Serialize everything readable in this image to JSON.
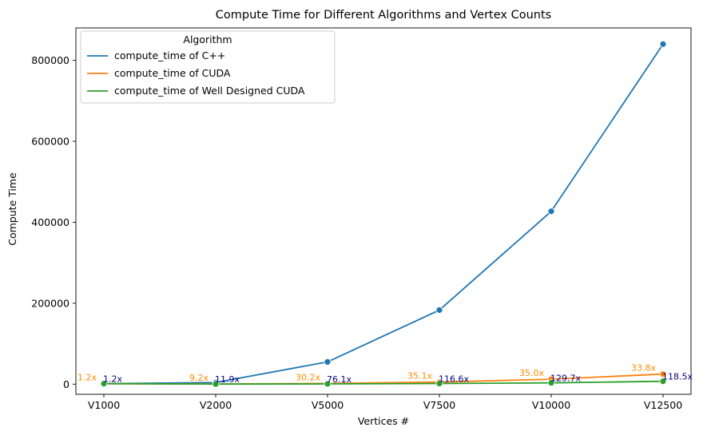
{
  "chart_data": {
    "type": "line",
    "title": "Compute Time for Different Algorithms and Vertex Counts",
    "xlabel": "Vertices #",
    "ylabel": "Compute Time",
    "categories": [
      "V1000",
      "V2000",
      "V5000",
      "V7500",
      "V10000",
      "V12500"
    ],
    "ylim": [
      -25000,
      880000
    ],
    "yticks": [
      0,
      200000,
      400000,
      600000,
      800000
    ],
    "grid": false,
    "legend": {
      "title": "Algorithm",
      "placement": "top-left"
    },
    "series": [
      {
        "name": "compute_time of C++",
        "color": "#1f77b4",
        "values": [
          1500,
          4000,
          55000,
          183000,
          427000,
          840000
        ]
      },
      {
        "name": "compute_time of CUDA",
        "color": "#ff7f0e",
        "values": [
          1250,
          435,
          1820,
          5210,
          12200,
          24850
        ]
      },
      {
        "name": "compute_time of Well Designed CUDA",
        "color": "#2ca02c",
        "values": [
          1250,
          336,
          723,
          1570,
          3290,
          7090
        ]
      }
    ],
    "annotations": {
      "cuda_speedup": {
        "color": "#ff8c00",
        "labels": [
          "1.2x",
          "9.2x",
          "30.2x",
          "35.1x",
          "35.0x",
          "33.8x"
        ]
      },
      "well_designed_speedup": {
        "color": "#000080",
        "labels": [
          "1.2x",
          "11.9x",
          "76.1x",
          "116.6x",
          "129.7x",
          "118.5x"
        ]
      }
    }
  }
}
